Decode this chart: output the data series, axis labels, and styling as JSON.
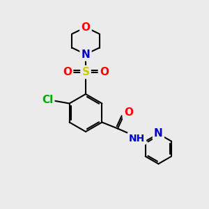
{
  "background_color": "#ebebeb",
  "atom_colors": {
    "C": "#000000",
    "N": "#0000cc",
    "O": "#ff0000",
    "S": "#cccc00",
    "Cl": "#00aa00",
    "H": "#000000"
  },
  "bond_color": "#000000",
  "bond_width": 1.5,
  "font_size_atoms": 11,
  "font_size_small": 9
}
